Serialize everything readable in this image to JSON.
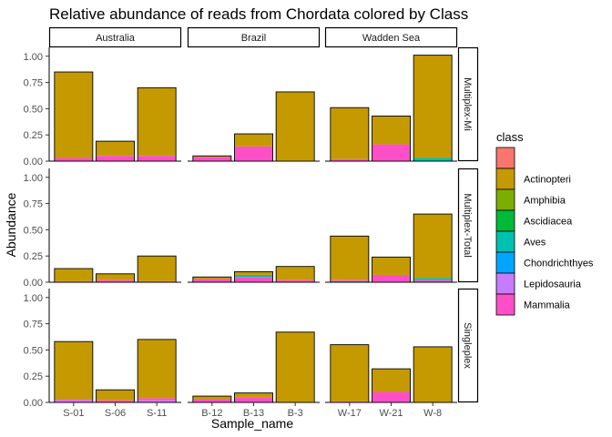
{
  "chart_data": {
    "type": "bar",
    "title": "Relative abundance of reads from Chordata colored by Class",
    "xlabel": "Sample_name",
    "ylabel": "Abundance",
    "ylim": [
      0,
      1.05
    ],
    "yticks": [
      "0.00",
      "0.25",
      "0.50",
      "0.75",
      "1.00"
    ],
    "ytick_values": [
      0,
      0.25,
      0.5,
      0.75,
      1.0
    ],
    "legend": {
      "title": "class",
      "position": "right",
      "entries": [
        {
          "name": "",
          "color": "#F8766D"
        },
        {
          "name": "Actinopteri",
          "color": "#C49A00"
        },
        {
          "name": "Amphibia",
          "color": "#7CAE00"
        },
        {
          "name": "Ascidiacea",
          "color": "#00BA38"
        },
        {
          "name": "Aves",
          "color": "#00C0AF"
        },
        {
          "name": "Chondrichthyes",
          "color": "#00A5FF"
        },
        {
          "name": "Lepidosauria",
          "color": "#C77CFF"
        },
        {
          "name": "Mammalia",
          "color": "#FF4FC8"
        }
      ]
    },
    "columns": [
      {
        "strip": "Australia",
        "samples": [
          "S-01",
          "S-06",
          "S-11"
        ]
      },
      {
        "strip": "Brazil",
        "samples": [
          "B-12",
          "B-13",
          "B-3"
        ]
      },
      {
        "strip": "Wadden Sea",
        "samples": [
          "W-17",
          "W-21",
          "W-8"
        ]
      }
    ],
    "rows": [
      {
        "strip": "Multiplex-Mi",
        "bars": [
          [
            {
              "class": "Mammalia",
              "value": 0.03
            },
            {
              "class": "Actinopteri",
              "value": 0.82
            }
          ],
          [
            {
              "class": "Mammalia",
              "value": 0.05
            },
            {
              "class": "Actinopteri",
              "value": 0.14
            }
          ],
          [
            {
              "class": "Mammalia",
              "value": 0.05
            },
            {
              "class": "Actinopteri",
              "value": 0.65
            }
          ],
          [
            {
              "class": "Mammalia",
              "value": 0.04
            },
            {
              "class": "Actinopteri",
              "value": 0.01
            }
          ],
          [
            {
              "class": "Mammalia",
              "value": 0.14
            },
            {
              "class": "Actinopteri",
              "value": 0.12
            }
          ],
          [
            {
              "class": "Actinopteri",
              "value": 0.66
            }
          ],
          [
            {
              "class": "Mammalia",
              "value": 0.02
            },
            {
              "class": "Actinopteri",
              "value": 0.49
            }
          ],
          [
            {
              "class": "Mammalia",
              "value": 0.16
            },
            {
              "class": "Actinopteri",
              "value": 0.27
            }
          ],
          [
            {
              "class": "Aves",
              "value": 0.03
            },
            {
              "class": "Actinopteri",
              "value": 0.98
            }
          ]
        ]
      },
      {
        "strip": "Multiplex-Total",
        "bars": [
          [
            {
              "class": "Mammalia",
              "value": 0.01
            },
            {
              "class": "Actinopteri",
              "value": 0.12
            }
          ],
          [
            {
              "class": "Mammalia",
              "value": 0.02
            },
            {
              "class": "Actinopteri",
              "value": 0.06
            }
          ],
          [
            {
              "class": "Mammalia",
              "value": 0.01
            },
            {
              "class": "Actinopteri",
              "value": 0.24
            }
          ],
          [
            {
              "class": "Mammalia",
              "value": 0.03
            },
            {
              "class": "Actinopteri",
              "value": 0.02
            }
          ],
          [
            {
              "class": "Mammalia",
              "value": 0.05
            },
            {
              "class": "Aves",
              "value": 0.02
            },
            {
              "class": "Actinopteri",
              "value": 0.03
            }
          ],
          [
            {
              "class": "Mammalia",
              "value": 0.02
            },
            {
              "class": "Actinopteri",
              "value": 0.13
            }
          ],
          [
            {
              "class": "Chondrichthyes",
              "value": 0.01
            },
            {
              "class": "Mammalia",
              "value": 0.01
            },
            {
              "class": "Actinopteri",
              "value": 0.42
            }
          ],
          [
            {
              "class": "Mammalia",
              "value": 0.07
            },
            {
              "class": "Actinopteri",
              "value": 0.17
            }
          ],
          [
            {
              "class": "Mammalia",
              "value": 0.02
            },
            {
              "class": "Aves",
              "value": 0.02
            },
            {
              "class": "Actinopteri",
              "value": 0.61
            }
          ]
        ]
      },
      {
        "strip": "Singleplex",
        "bars": [
          [
            {
              "class": "Lepidosauria",
              "value": 0.02
            },
            {
              "class": "Mammalia",
              "value": 0.01
            },
            {
              "class": "Actinopteri",
              "value": 0.55
            }
          ],
          [
            {
              "class": "Mammalia",
              "value": 0.02
            },
            {
              "class": "Actinopteri",
              "value": 0.1
            }
          ],
          [
            {
              "class": "Lepidosauria",
              "value": 0.02
            },
            {
              "class": "Mammalia",
              "value": 0.02
            },
            {
              "class": "Actinopteri",
              "value": 0.56
            }
          ],
          [
            {
              "class": "Mammalia",
              "value": 0.03
            },
            {
              "class": "Actinopteri",
              "value": 0.03
            }
          ],
          [
            {
              "class": "Mammalia",
              "value": 0.05
            },
            {
              "class": "Actinopteri",
              "value": 0.04
            }
          ],
          [
            {
              "class": "Actinopteri",
              "value": 0.67
            }
          ],
          [
            {
              "class": "Mammalia",
              "value": 0.01
            },
            {
              "class": "Actinopteri",
              "value": 0.54
            }
          ],
          [
            {
              "class": "Mammalia",
              "value": 0.1
            },
            {
              "class": "Actinopteri",
              "value": 0.22
            }
          ],
          [
            {
              "class": "Actinopteri",
              "value": 0.53
            }
          ]
        ]
      }
    ]
  }
}
